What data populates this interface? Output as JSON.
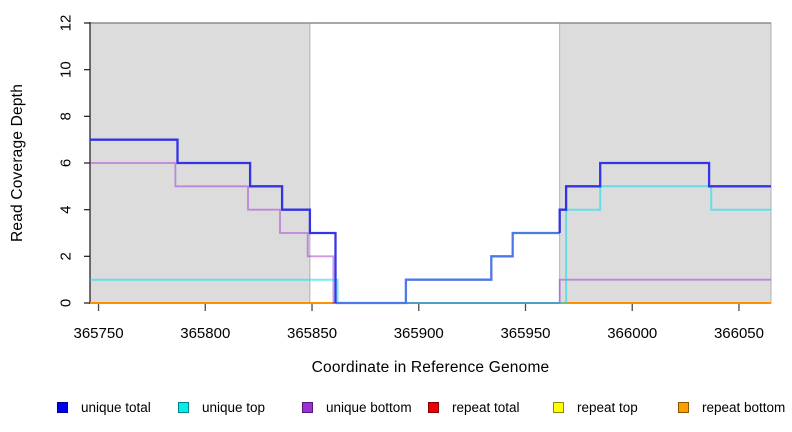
{
  "chart_data": {
    "type": "line",
    "subtype": "step",
    "xlabel": "Coordinate in Reference Genome",
    "ylabel": "Read Coverage Depth",
    "xlim": [
      365746,
      366065
    ],
    "ylim": [
      0,
      12
    ],
    "x_ticks": [
      365750,
      365800,
      365850,
      365900,
      365950,
      366000,
      366050
    ],
    "y_ticks": [
      0,
      2,
      4,
      6,
      8,
      10,
      12
    ],
    "grid": "off",
    "top_boundary_y": 12,
    "region_fill": "#DCDCDC",
    "region_border": "#B2B2B2",
    "shaded_regions": [
      {
        "name": "left-repeat-region",
        "from": 365746,
        "to": 365849
      },
      {
        "name": "right-repeat-region",
        "from": 365966,
        "to": 366065
      }
    ],
    "series": [
      {
        "name": "unique total",
        "color": "#0000EE",
        "steps": [
          [
            365746,
            7
          ],
          [
            365787,
            6
          ],
          [
            365821,
            5
          ],
          [
            365836,
            4
          ],
          [
            365849,
            3
          ],
          [
            365861,
            0
          ],
          [
            365894,
            1
          ],
          [
            365934,
            2
          ],
          [
            365944,
            3
          ],
          [
            365966,
            4
          ],
          [
            365969,
            5
          ],
          [
            365985,
            6
          ],
          [
            366036,
            5
          ],
          [
            366065,
            5
          ]
        ]
      },
      {
        "name": "unique top",
        "color": "#00EEEE",
        "steps": [
          [
            365746,
            1
          ],
          [
            365862,
            0
          ],
          [
            365969,
            4
          ],
          [
            365985,
            5
          ],
          [
            366037,
            4
          ],
          [
            366065,
            4
          ]
        ]
      },
      {
        "name": "unique bottom",
        "color": "#9B30D6",
        "steps": [
          [
            365746,
            6
          ],
          [
            365786,
            5
          ],
          [
            365820,
            4
          ],
          [
            365835,
            3
          ],
          [
            365848,
            2
          ],
          [
            365860,
            0
          ],
          [
            365966,
            1
          ],
          [
            366065,
            1
          ]
        ]
      },
      {
        "name": "repeat total",
        "color": "#EE0000",
        "steps": [
          [
            365746,
            0
          ],
          [
            366065,
            0
          ]
        ]
      },
      {
        "name": "repeat top",
        "color": "#FFFF00",
        "steps": [
          [
            365746,
            0
          ],
          [
            366065,
            0
          ]
        ]
      },
      {
        "name": "repeat bottom",
        "color": "#FF9100",
        "steps": [
          [
            365746,
            0
          ],
          [
            366065,
            0
          ]
        ]
      }
    ],
    "render_layers": [
      {
        "name": "repeat-top-line",
        "color": "#FFE800",
        "width": 2,
        "opacity": 1,
        "points": [
          [
            365746,
            0
          ],
          [
            366065,
            0
          ]
        ]
      },
      {
        "name": "repeat-bottom-line",
        "color": "#FF9100",
        "width": 2,
        "opacity": 1,
        "points": [
          [
            365746,
            0
          ],
          [
            366065,
            0
          ]
        ]
      },
      {
        "name": "repeat-total-line",
        "color": "#C4506E",
        "width": 1.8,
        "opacity": 0.9,
        "points": [
          [
            365861,
            0
          ],
          [
            365966,
            0
          ]
        ]
      },
      {
        "name": "unique-bottom-line",
        "color": "#9B30D6",
        "width": 1.8,
        "opacity": 0.5,
        "points": [
          [
            365746,
            6
          ],
          [
            365786,
            5
          ],
          [
            365820,
            4
          ],
          [
            365835,
            3
          ],
          [
            365848,
            2
          ],
          [
            365860,
            0
          ],
          [
            365966,
            1
          ],
          [
            366065,
            1
          ]
        ]
      },
      {
        "name": "unique-top-line",
        "color": "#00E0EE",
        "width": 2,
        "opacity": 0.55,
        "points": [
          [
            365746,
            1
          ],
          [
            365862,
            0
          ],
          [
            365969,
            4
          ],
          [
            365985,
            5
          ],
          [
            366037,
            4
          ],
          [
            366065,
            4
          ]
        ]
      },
      {
        "name": "unique-total-mid",
        "color": "#4D79E8",
        "width": 2.3,
        "opacity": 1,
        "points": [
          [
            365861,
            0
          ],
          [
            365894,
            1
          ],
          [
            365934,
            2
          ],
          [
            365944,
            3
          ],
          [
            365966,
            3
          ]
        ]
      },
      {
        "name": "unique-total-left",
        "color": "#2A2AE6",
        "width": 2.3,
        "opacity": 0.95,
        "points": [
          [
            365746,
            7
          ],
          [
            365787,
            6
          ],
          [
            365821,
            5
          ],
          [
            365836,
            4
          ],
          [
            365849,
            3
          ],
          [
            365861,
            0
          ]
        ]
      },
      {
        "name": "unique-total-right",
        "color": "#2A2AE6",
        "width": 2.3,
        "opacity": 0.95,
        "points": [
          [
            365966,
            3
          ],
          [
            365966,
            4
          ],
          [
            365969,
            5
          ],
          [
            365985,
            6
          ],
          [
            366036,
            5
          ],
          [
            366065,
            5
          ]
        ]
      }
    ],
    "legend_position": "bottom",
    "legend": [
      {
        "label": "unique total",
        "color": "#0000EE"
      },
      {
        "label": "unique top",
        "color": "#00EEEE"
      },
      {
        "label": "unique bottom",
        "color": "#9B30D6"
      },
      {
        "label": "repeat total",
        "color": "#EE0000"
      },
      {
        "label": "repeat top",
        "color": "#FFFF00"
      },
      {
        "label": "repeat bottom",
        "color": "#FF9D00"
      }
    ],
    "axis_color": "#262626",
    "tick_color": "#4A4A4A",
    "top_line_color": "#8C8C8C"
  }
}
